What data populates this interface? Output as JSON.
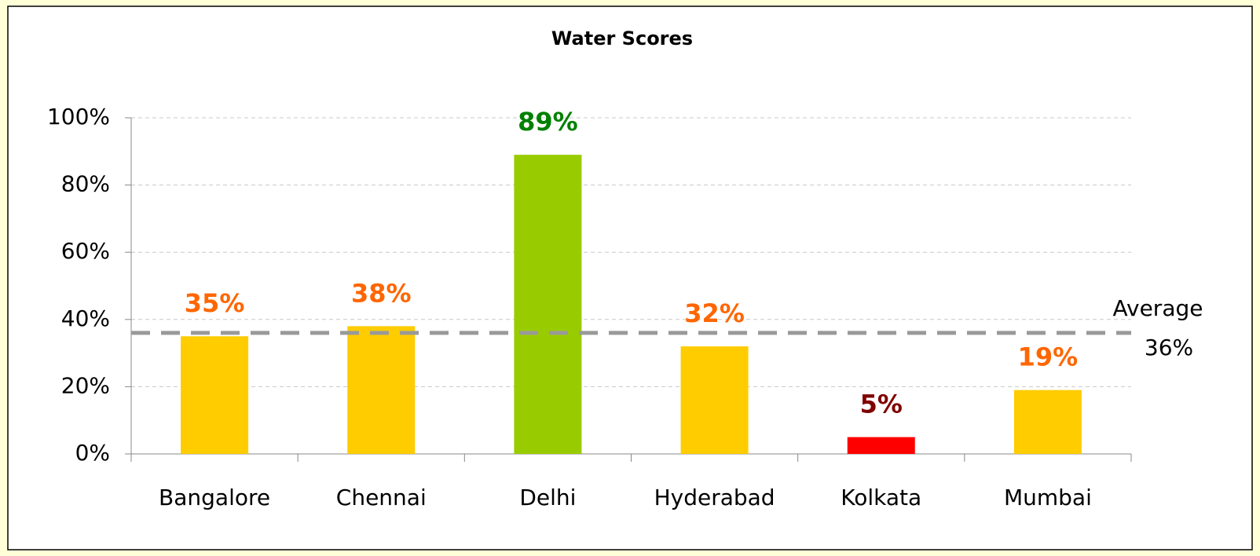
{
  "chart_data": {
    "type": "bar",
    "title": "Water Scores",
    "categories": [
      "Bangalore",
      "Chennai",
      "Delhi",
      "Hyderabad",
      "Kolkata",
      "Mumbai"
    ],
    "values": [
      35,
      38,
      89,
      32,
      5,
      19
    ],
    "value_labels": [
      "35%",
      "38%",
      "89%",
      "32%",
      "5%",
      "19%"
    ],
    "colors": [
      "#ffcc00",
      "#ffcc00",
      "#99cc00",
      "#ffcc00",
      "#ff0000",
      "#ffcc00"
    ],
    "label_colors": [
      "#ff6600",
      "#ff6600",
      "#008000",
      "#ff6600",
      "#800000",
      "#ff6600"
    ],
    "ylim": [
      0,
      100
    ],
    "yticks": [
      {
        "value": 0,
        "label": "0%"
      },
      {
        "value": 20,
        "label": "20%"
      },
      {
        "value": 40,
        "label": "40%"
      },
      {
        "value": 60,
        "label": "60%"
      },
      {
        "value": 80,
        "label": "80%"
      },
      {
        "value": 100,
        "label": "100%"
      }
    ],
    "grid": true,
    "average": {
      "label": "Average",
      "value": 36,
      "value_label": "36%",
      "color": "#999999"
    }
  }
}
